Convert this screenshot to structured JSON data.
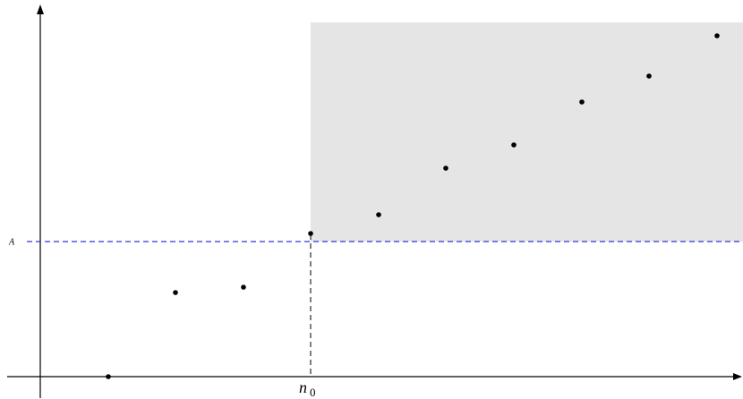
{
  "labels": {
    "threshold": "A",
    "index": "n",
    "index_sub": "0"
  }
}
